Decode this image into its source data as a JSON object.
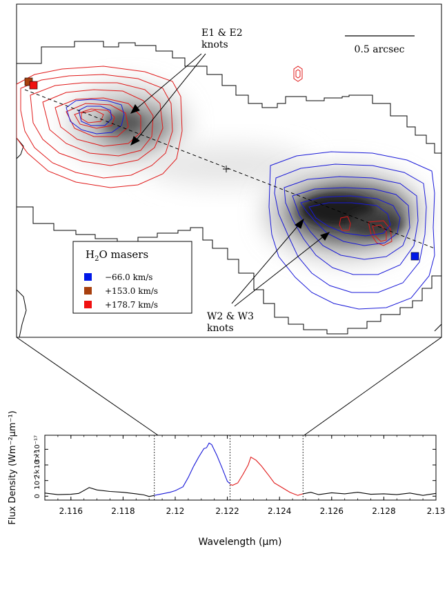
{
  "image_panel": {
    "annotation_east": [
      "E1 & E2",
      "knots"
    ],
    "annotation_west": [
      "W2 & W3",
      "knots"
    ],
    "scale_bar_label": "0.5 arcsec",
    "legend": {
      "title_main": "H",
      "title_sub": "2",
      "title_rest": "O masers",
      "entries": [
        {
          "label": "−66.0 km/s",
          "color": "#0018e8"
        },
        {
          "label": "+153.0 km/s",
          "color": "#a8400e"
        },
        {
          "label": "+178.7 km/s",
          "color": "#f01010"
        }
      ]
    },
    "contour_colors": {
      "redshifted": "#e01818",
      "blueshifted": "#1818d8",
      "outer": "#000000"
    }
  },
  "chart_data": {
    "type": "line",
    "xlabel": "Wavelength (μm)",
    "ylabel": "Flux Density (Wm⁻²μm⁻¹)",
    "xlim": [
      2.115,
      2.13
    ],
    "ylim": [
      -2.5e-18,
      3.9e-17
    ],
    "xticks": [
      2.116,
      2.118,
      2.12,
      2.122,
      2.124,
      2.126,
      2.128,
      2.13
    ],
    "xtick_labels": [
      "2.116",
      "2.118",
      "2.12",
      "2.122",
      "2.124",
      "2.126",
      "2.128",
      "2.13"
    ],
    "yticks": [
      0,
      1e-17,
      2e-17,
      3e-17
    ],
    "ytick_labels": [
      "0",
      "10⁻¹⁷",
      "2×10⁻¹⁷",
      "3×10⁻¹⁷"
    ],
    "vlines": [
      2.1192,
      2.1221,
      2.1249
    ],
    "series": [
      {
        "color": "#000000",
        "points": [
          [
            2.115,
            2e-18
          ],
          [
            2.1155,
            1e-18
          ],
          [
            2.116,
            1.2e-18
          ],
          [
            2.1163,
            1.8e-18
          ],
          [
            2.1167,
            5.5e-18
          ],
          [
            2.117,
            4e-18
          ],
          [
            2.1175,
            3e-18
          ],
          [
            2.118,
            2.5e-18
          ],
          [
            2.1185,
            1.5e-18
          ],
          [
            2.1188,
            8e-19
          ],
          [
            2.119,
            -2e-19
          ],
          [
            2.1192,
            5e-19
          ]
        ]
      },
      {
        "color": "#1818d8",
        "points": [
          [
            2.1192,
            5e-19
          ],
          [
            2.1195,
            1.5e-18
          ],
          [
            2.1198,
            2.5e-18
          ],
          [
            2.12,
            3.5e-18
          ],
          [
            2.1203,
            6e-18
          ],
          [
            2.1205,
            1.2e-17
          ],
          [
            2.1207,
            1.9e-17
          ],
          [
            2.1209,
            2.5e-17
          ],
          [
            2.1211,
            3.05e-17
          ],
          [
            2.1212,
            3.1e-17
          ],
          [
            2.1213,
            3.4e-17
          ],
          [
            2.1214,
            3.3e-17
          ],
          [
            2.1216,
            2.6e-17
          ],
          [
            2.1218,
            1.8e-17
          ],
          [
            2.122,
            9.5e-18
          ],
          [
            2.1221,
            8e-18
          ]
        ]
      },
      {
        "color": "#e01818",
        "points": [
          [
            2.1221,
            7.5e-18
          ],
          [
            2.1222,
            7e-18
          ],
          [
            2.1224,
            8.5e-18
          ],
          [
            2.1226,
            1.4e-17
          ],
          [
            2.1228,
            2e-17
          ],
          [
            2.1229,
            2.5e-17
          ],
          [
            2.1231,
            2.3e-17
          ],
          [
            2.1233,
            1.95e-17
          ],
          [
            2.1236,
            1.3e-17
          ],
          [
            2.1238,
            8.5e-18
          ],
          [
            2.1241,
            5.5e-18
          ],
          [
            2.1244,
            2.5e-18
          ],
          [
            2.1247,
            5e-19
          ],
          [
            2.1249,
            1.5e-18
          ]
        ]
      },
      {
        "color": "#000000",
        "points": [
          [
            2.1249,
            1.5e-18
          ],
          [
            2.1252,
            2.5e-18
          ],
          [
            2.1255,
            1e-18
          ],
          [
            2.126,
            2.2e-18
          ],
          [
            2.1265,
            1.5e-18
          ],
          [
            2.127,
            2.5e-18
          ],
          [
            2.1275,
            1.2e-18
          ],
          [
            2.128,
            1.5e-18
          ],
          [
            2.1285,
            1e-18
          ],
          [
            2.129,
            2e-18
          ],
          [
            2.1295,
            5e-19
          ],
          [
            2.13,
            1.8e-18
          ]
        ]
      }
    ]
  }
}
